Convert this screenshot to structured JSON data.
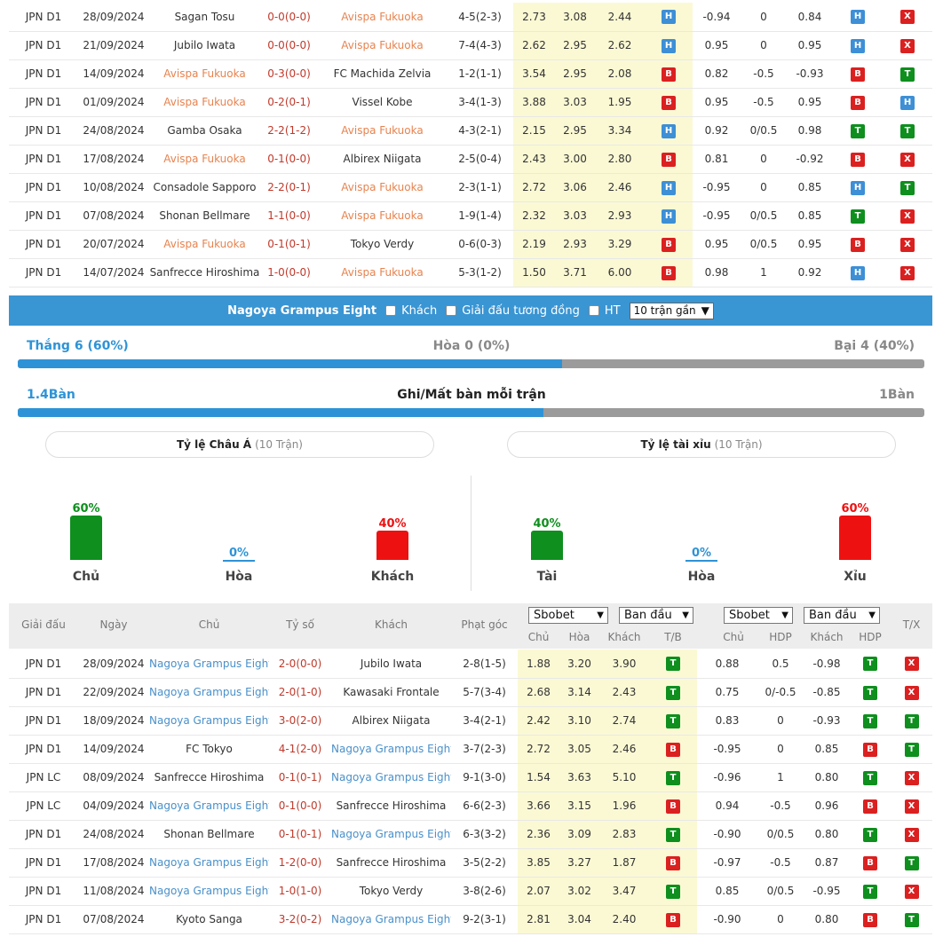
{
  "top_matches": [
    {
      "league": "JPN D1",
      "date": "28/09/2024",
      "home": "Sagan Tosu",
      "home_hl": false,
      "score": "0-0(0-0)",
      "away": "Avispa Fukuoka",
      "away_hl": true,
      "corner": "4-5(2-3)",
      "o1": "2.73",
      "o2": "3.08",
      "o3": "2.44",
      "r1": "H",
      "hdp_h": "-0.94",
      "hdp": "0",
      "hdp_a": "0.84",
      "r2": "H",
      "r3": "X"
    },
    {
      "league": "JPN D1",
      "date": "21/09/2024",
      "home": "Jubilo Iwata",
      "home_hl": false,
      "score": "0-0(0-0)",
      "away": "Avispa Fukuoka",
      "away_hl": true,
      "corner": "7-4(4-3)",
      "o1": "2.62",
      "o2": "2.95",
      "o3": "2.62",
      "r1": "H",
      "hdp_h": "0.95",
      "hdp": "0",
      "hdp_a": "0.95",
      "r2": "H",
      "r3": "X"
    },
    {
      "league": "JPN D1",
      "date": "14/09/2024",
      "home": "Avispa Fukuoka",
      "home_hl": true,
      "score": "0-3(0-0)",
      "away": "FC Machida Zelvia",
      "away_hl": false,
      "corner": "1-2(1-1)",
      "o1": "3.54",
      "o2": "2.95",
      "o3": "2.08",
      "r1": "B",
      "hdp_h": "0.82",
      "hdp": "-0.5",
      "hdp_a": "-0.93",
      "r2": "B",
      "r3": "T"
    },
    {
      "league": "JPN D1",
      "date": "01/09/2024",
      "home": "Avispa Fukuoka",
      "home_hl": true,
      "score": "0-2(0-1)",
      "away": "Vissel Kobe",
      "away_hl": false,
      "corner": "3-4(1-3)",
      "o1": "3.88",
      "o2": "3.03",
      "o3": "1.95",
      "r1": "B",
      "hdp_h": "0.95",
      "hdp": "-0.5",
      "hdp_a": "0.95",
      "r2": "B",
      "r3": "H"
    },
    {
      "league": "JPN D1",
      "date": "24/08/2024",
      "home": "Gamba Osaka",
      "home_hl": false,
      "score": "2-2(1-2)",
      "away": "Avispa Fukuoka",
      "away_hl": true,
      "corner": "4-3(2-1)",
      "o1": "2.15",
      "o2": "2.95",
      "o3": "3.34",
      "r1": "H",
      "hdp_h": "0.92",
      "hdp": "0/0.5",
      "hdp_a": "0.98",
      "r2": "T",
      "r3": "T"
    },
    {
      "league": "JPN D1",
      "date": "17/08/2024",
      "home": "Avispa Fukuoka",
      "home_hl": true,
      "score": "0-1(0-0)",
      "away": "Albirex Niigata",
      "away_hl": false,
      "corner": "2-5(0-4)",
      "o1": "2.43",
      "o2": "3.00",
      "o3": "2.80",
      "r1": "B",
      "hdp_h": "0.81",
      "hdp": "0",
      "hdp_a": "-0.92",
      "r2": "B",
      "r3": "X"
    },
    {
      "league": "JPN D1",
      "date": "10/08/2024",
      "home": "Consadole Sapporo",
      "home_hl": false,
      "score": "2-2(0-1)",
      "away": "Avispa Fukuoka",
      "away_hl": true,
      "corner": "2-3(1-1)",
      "o1": "2.72",
      "o2": "3.06",
      "o3": "2.46",
      "r1": "H",
      "hdp_h": "-0.95",
      "hdp": "0",
      "hdp_a": "0.85",
      "r2": "H",
      "r3": "T"
    },
    {
      "league": "JPN D1",
      "date": "07/08/2024",
      "home": "Shonan Bellmare",
      "home_hl": false,
      "score": "1-1(0-0)",
      "away": "Avispa Fukuoka",
      "away_hl": true,
      "corner": "1-9(1-4)",
      "o1": "2.32",
      "o2": "3.03",
      "o3": "2.93",
      "r1": "H",
      "hdp_h": "-0.95",
      "hdp": "0/0.5",
      "hdp_a": "0.85",
      "r2": "T",
      "r3": "X"
    },
    {
      "league": "JPN D1",
      "date": "20/07/2024",
      "home": "Avispa Fukuoka",
      "home_hl": true,
      "score": "0-1(0-1)",
      "away": "Tokyo Verdy",
      "away_hl": false,
      "corner": "0-6(0-3)",
      "o1": "2.19",
      "o2": "2.93",
      "o3": "3.29",
      "r1": "B",
      "hdp_h": "0.95",
      "hdp": "0/0.5",
      "hdp_a": "0.95",
      "r2": "B",
      "r3": "X"
    },
    {
      "league": "JPN D1",
      "date": "14/07/2024",
      "home": "Sanfrecce Hiroshima",
      "home_hl": false,
      "score": "1-0(0-0)",
      "away": "Avispa Fukuoka",
      "away_hl": true,
      "corner": "5-3(1-2)",
      "o1": "1.50",
      "o2": "3.71",
      "o3": "6.00",
      "r1": "B",
      "hdp_h": "0.98",
      "hdp": "1",
      "hdp_a": "0.92",
      "r2": "H",
      "r3": "X"
    }
  ],
  "filter": {
    "team": "Nagoya Grampus Eight",
    "opt_away": "Khách",
    "opt_same_league": "Giải đấu tương đồng",
    "opt_ht": "HT",
    "select": "10 trận gần"
  },
  "stats": {
    "win_label": "Thắng 6 (60%)",
    "draw_label": "Hòa 0 (0%)",
    "loss_label": "Bại 4 (40%)",
    "win_fraction": 0.6,
    "goals_for": "1.4Bàn",
    "goals_title": "Ghi/Mất bàn mỗi trận",
    "goals_against": "1Bàn",
    "goals_fraction": 0.58
  },
  "asian": {
    "title": "Tỷ lệ Châu Á",
    "count": "(10 Trận)",
    "cols": [
      {
        "pct": "60%",
        "value": 0.6,
        "label": "Chủ",
        "color": "#0e8f1e"
      },
      {
        "pct": "0%",
        "value": 0,
        "label": "Hòa",
        "color": "#2e93d6"
      },
      {
        "pct": "40%",
        "value": 0.4,
        "label": "Khách",
        "color": "#ee1111"
      }
    ]
  },
  "overunder": {
    "title": "Tỷ lệ tài xỉu",
    "count": "(10 Trận)",
    "cols": [
      {
        "pct": "40%",
        "value": 0.4,
        "label": "Tài",
        "color": "#0e8f1e"
      },
      {
        "pct": "0%",
        "value": 0,
        "label": "Hòa",
        "color": "#2e93d6"
      },
      {
        "pct": "60%",
        "value": 0.6,
        "label": "Xỉu",
        "color": "#ee1111"
      }
    ]
  },
  "header": {
    "league": "Giải đấu",
    "date": "Ngày",
    "home": "Chủ",
    "score": "Tỷ số",
    "away": "Khách",
    "corner": "Phạt góc",
    "book1": "Sbobet",
    "type1": "Ban đầu",
    "book2": "Sbobet",
    "type2": "Ban đầu",
    "s_home": "Chủ",
    "s_draw": "Hòa",
    "s_away": "Khách",
    "s_tb": "T/B",
    "h_home": "Chủ",
    "h_hdp": "HDP",
    "h_away": "Khách",
    "h_hdp2": "HDP",
    "tx": "T/X"
  },
  "bottom_matches": [
    {
      "league": "JPN D1",
      "date": "28/09/2024",
      "home": "Nagoya Grampus Eight",
      "home_hl": true,
      "score": "2-0(0-0)",
      "away": "Jubilo Iwata",
      "away_hl": false,
      "corner": "2-8(1-5)",
      "o1": "1.88",
      "o2": "3.20",
      "o3": "3.90",
      "r1": "T",
      "hdp_h": "0.88",
      "hdp": "0.5",
      "hdp_a": "-0.98",
      "r2": "T",
      "r3": "X"
    },
    {
      "league": "JPN D1",
      "date": "22/09/2024",
      "home": "Nagoya Grampus Eight",
      "home_hl": true,
      "score": "2-0(1-0)",
      "away": "Kawasaki Frontale",
      "away_hl": false,
      "corner": "5-7(3-4)",
      "o1": "2.68",
      "o2": "3.14",
      "o3": "2.43",
      "r1": "T",
      "hdp_h": "0.75",
      "hdp": "0/-0.5",
      "hdp_a": "-0.85",
      "r2": "T",
      "r3": "X"
    },
    {
      "league": "JPN D1",
      "date": "18/09/2024",
      "home": "Nagoya Grampus Eight",
      "home_hl": true,
      "score": "3-0(2-0)",
      "away": "Albirex Niigata",
      "away_hl": false,
      "corner": "3-4(2-1)",
      "o1": "2.42",
      "o2": "3.10",
      "o3": "2.74",
      "r1": "T",
      "hdp_h": "0.83",
      "hdp": "0",
      "hdp_a": "-0.93",
      "r2": "T",
      "r3": "T"
    },
    {
      "league": "JPN D1",
      "date": "14/09/2024",
      "home": "FC Tokyo",
      "home_hl": false,
      "score": "4-1(2-0)",
      "away": "Nagoya Grampus Eight",
      "away_hl": true,
      "corner": "3-7(2-3)",
      "o1": "2.72",
      "o2": "3.05",
      "o3": "2.46",
      "r1": "B",
      "hdp_h": "-0.95",
      "hdp": "0",
      "hdp_a": "0.85",
      "r2": "B",
      "r3": "T"
    },
    {
      "league": "JPN LC",
      "date": "08/09/2024",
      "home": "Sanfrecce Hiroshima",
      "home_hl": false,
      "score": "0-1(0-1)",
      "away": "Nagoya Grampus Eight",
      "away_hl": true,
      "corner": "9-1(3-0)",
      "o1": "1.54",
      "o2": "3.63",
      "o3": "5.10",
      "r1": "T",
      "hdp_h": "-0.96",
      "hdp": "1",
      "hdp_a": "0.80",
      "r2": "T",
      "r3": "X"
    },
    {
      "league": "JPN LC",
      "date": "04/09/2024",
      "home": "Nagoya Grampus Eight",
      "home_hl": true,
      "score": "0-1(0-0)",
      "away": "Sanfrecce Hiroshima",
      "away_hl": false,
      "corner": "6-6(2-3)",
      "o1": "3.66",
      "o2": "3.15",
      "o3": "1.96",
      "r1": "B",
      "hdp_h": "0.94",
      "hdp": "-0.5",
      "hdp_a": "0.96",
      "r2": "B",
      "r3": "X"
    },
    {
      "league": "JPN D1",
      "date": "24/08/2024",
      "home": "Shonan Bellmare",
      "home_hl": false,
      "score": "0-1(0-1)",
      "away": "Nagoya Grampus Eight",
      "away_hl": true,
      "corner": "6-3(3-2)",
      "o1": "2.36",
      "o2": "3.09",
      "o3": "2.83",
      "r1": "T",
      "hdp_h": "-0.90",
      "hdp": "0/0.5",
      "hdp_a": "0.80",
      "r2": "T",
      "r3": "X"
    },
    {
      "league": "JPN D1",
      "date": "17/08/2024",
      "home": "Nagoya Grampus Eight",
      "home_hl": true,
      "score": "1-2(0-0)",
      "away": "Sanfrecce Hiroshima",
      "away_hl": false,
      "corner": "3-5(2-2)",
      "o1": "3.85",
      "o2": "3.27",
      "o3": "1.87",
      "r1": "B",
      "hdp_h": "-0.97",
      "hdp": "-0.5",
      "hdp_a": "0.87",
      "r2": "B",
      "r3": "T"
    },
    {
      "league": "JPN D1",
      "date": "11/08/2024",
      "home": "Nagoya Grampus Eight",
      "home_hl": true,
      "score": "1-0(1-0)",
      "away": "Tokyo Verdy",
      "away_hl": false,
      "corner": "3-8(2-6)",
      "o1": "2.07",
      "o2": "3.02",
      "o3": "3.47",
      "r1": "T",
      "hdp_h": "0.85",
      "hdp": "0/0.5",
      "hdp_a": "-0.95",
      "r2": "T",
      "r3": "X"
    },
    {
      "league": "JPN D1",
      "date": "07/08/2024",
      "home": "Kyoto Sanga",
      "home_hl": false,
      "score": "3-2(0-2)",
      "away": "Nagoya Grampus Eight",
      "away_hl": true,
      "corner": "9-2(3-1)",
      "o1": "2.81",
      "o2": "3.04",
      "o3": "2.40",
      "r1": "B",
      "hdp_h": "-0.90",
      "hdp": "0",
      "hdp_a": "0.80",
      "r2": "B",
      "r3": "T"
    }
  ]
}
